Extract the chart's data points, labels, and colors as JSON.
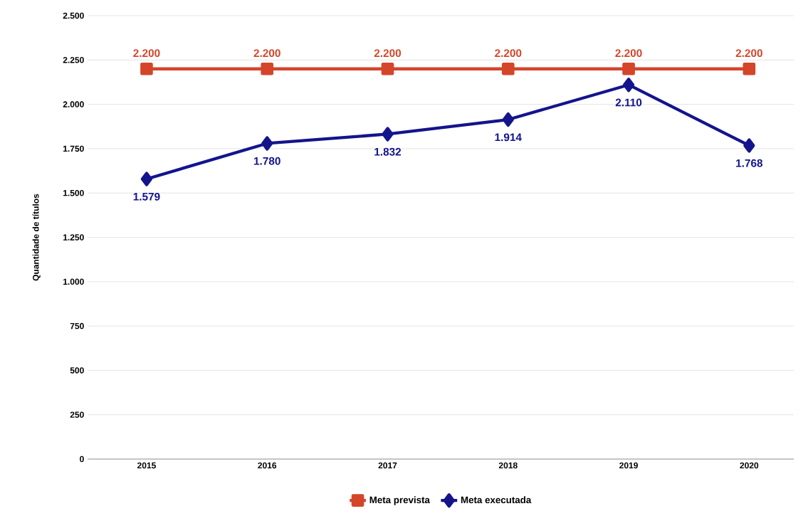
{
  "chart_data": {
    "type": "line",
    "ylabel": "Quantidade de títulos",
    "categories": [
      "2015",
      "2016",
      "2017",
      "2018",
      "2019",
      "2020"
    ],
    "series": [
      {
        "name": "Meta prevista",
        "color": "#d4452a",
        "marker": "square",
        "values": [
          2200,
          2200,
          2200,
          2200,
          2200,
          2200
        ],
        "value_labels": [
          "2.200",
          "2.200",
          "2.200",
          "2.200",
          "2.200",
          "2.200"
        ]
      },
      {
        "name": "Meta executada",
        "color": "#14148c",
        "marker": "diamond",
        "values": [
          1579,
          1780,
          1832,
          1914,
          2110,
          1768
        ],
        "value_labels": [
          "1.579",
          "1.780",
          "1.832",
          "1.914",
          "2.110",
          "1.768"
        ]
      }
    ],
    "ylim": [
      0,
      2500
    ],
    "yticks": [
      0,
      250,
      500,
      750,
      {
        "value": 1000,
        "label": "1.000"
      },
      {
        "value": 1250,
        "label": "1.250"
      },
      {
        "value": 1500,
        "label": "1.500"
      },
      {
        "value": 1750,
        "label": "1.750"
      },
      {
        "value": 2000,
        "label": "2.000"
      },
      {
        "value": 2250,
        "label": "2.250"
      },
      {
        "value": 2500,
        "label": "2.500"
      }
    ],
    "grid": "y",
    "legend": "bottom"
  }
}
